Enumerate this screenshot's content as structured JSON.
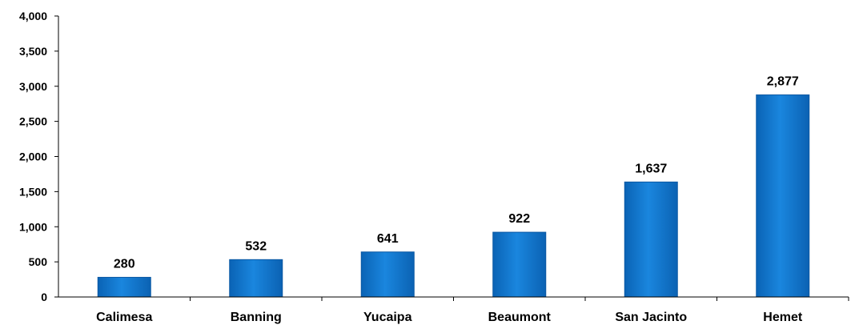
{
  "chart_data": {
    "type": "bar",
    "categories": [
      "Calimesa",
      "Banning",
      "Yucaipa",
      "Beaumont",
      "San Jacinto",
      "Hemet"
    ],
    "values": [
      280,
      532,
      641,
      922,
      1637,
      2877
    ],
    "value_labels": [
      "280",
      "532",
      "641",
      "922",
      "1,637",
      "2,877"
    ],
    "ylim": [
      0,
      4000
    ],
    "yticks": [
      0,
      500,
      1000,
      1500,
      2000,
      2500,
      3000,
      3500,
      4000
    ],
    "ytick_labels": [
      "0",
      "500",
      "1,000",
      "1,500",
      "2,000",
      "2,500",
      "3,000",
      "3,500",
      "4,000"
    ],
    "title": "",
    "xlabel": "",
    "ylabel": "",
    "grid": false,
    "legend": "none",
    "bar_color": "#1377d0"
  }
}
